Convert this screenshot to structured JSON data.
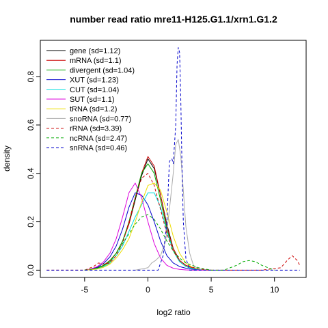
{
  "chart_data": {
    "type": "line",
    "title": "number read ratio mre11-H125.G1.1/xrn1.G1.2",
    "xlabel": "log2 ratio",
    "ylabel": "density",
    "xlim": [
      -8.5,
      12.5
    ],
    "ylim": [
      -0.03,
      0.95
    ],
    "x_ticks": [
      -5,
      0,
      5,
      10
    ],
    "y_ticks": [
      0.0,
      0.2,
      0.4,
      0.6,
      0.8
    ],
    "grid": false,
    "legend_position": "top-left",
    "series": [
      {
        "name": "gene (sd=1.12)",
        "color": "#000000",
        "dash": "solid",
        "x": [
          -5,
          -4.5,
          -4,
          -3.5,
          -3,
          -2.5,
          -2,
          -1.5,
          -1,
          -0.5,
          0,
          0.5,
          1,
          1.5,
          2,
          2.5,
          3,
          3.5,
          4,
          5
        ],
        "y": [
          0.0,
          0.004,
          0.01,
          0.02,
          0.04,
          0.07,
          0.12,
          0.19,
          0.29,
          0.39,
          0.46,
          0.42,
          0.31,
          0.19,
          0.09,
          0.04,
          0.02,
          0.01,
          0.004,
          0.0
        ]
      },
      {
        "name": "mRNA (sd=1.1)",
        "color": "#cc0000",
        "dash": "solid",
        "x": [
          -5,
          -4.5,
          -4,
          -3.5,
          -3,
          -2.5,
          -2,
          -1.5,
          -1,
          -0.5,
          0,
          0.5,
          1,
          1.5,
          2,
          2.5,
          3,
          3.5,
          4,
          5
        ],
        "y": [
          0.0,
          0.004,
          0.01,
          0.02,
          0.04,
          0.07,
          0.12,
          0.19,
          0.3,
          0.4,
          0.47,
          0.43,
          0.31,
          0.18,
          0.09,
          0.04,
          0.02,
          0.01,
          0.004,
          0.0
        ]
      },
      {
        "name": "divergent (sd=1.04)",
        "color": "#00aa00",
        "dash": "solid",
        "x": [
          -5,
          -4.5,
          -4,
          -3.5,
          -3,
          -2.5,
          -2,
          -1.5,
          -1,
          -0.5,
          0,
          0.5,
          1,
          1.5,
          2,
          2.5,
          3,
          3.5,
          4,
          5
        ],
        "y": [
          0.0,
          0.003,
          0.008,
          0.018,
          0.035,
          0.07,
          0.12,
          0.2,
          0.3,
          0.4,
          0.44,
          0.4,
          0.29,
          0.17,
          0.08,
          0.035,
          0.015,
          0.007,
          0.003,
          0.0
        ]
      },
      {
        "name": "XUT (sd=1.23)",
        "color": "#0000cc",
        "dash": "solid",
        "x": [
          -5,
          -4.5,
          -4,
          -3.5,
          -3,
          -2.5,
          -2,
          -1.5,
          -1,
          -0.5,
          0,
          0.5,
          1,
          1.5,
          2,
          2.5,
          3,
          3.5,
          4,
          5
        ],
        "y": [
          0.0,
          0.004,
          0.012,
          0.028,
          0.055,
          0.1,
          0.17,
          0.26,
          0.32,
          0.31,
          0.27,
          0.2,
          0.12,
          0.06,
          0.03,
          0.015,
          0.008,
          0.004,
          0.002,
          0.0
        ]
      },
      {
        "name": "CUT (sd=1.04)",
        "color": "#00dddd",
        "dash": "solid",
        "x": [
          -5,
          -4.5,
          -4,
          -3.5,
          -3,
          -2.5,
          -2,
          -1.5,
          -1,
          -0.5,
          0,
          0.5,
          1,
          1.5,
          2,
          2.5,
          3,
          3.5,
          4,
          5
        ],
        "y": [
          0.0,
          0.002,
          0.006,
          0.014,
          0.03,
          0.06,
          0.1,
          0.16,
          0.22,
          0.27,
          0.32,
          0.32,
          0.26,
          0.16,
          0.08,
          0.035,
          0.015,
          0.007,
          0.003,
          0.0
        ]
      },
      {
        "name": "SUT (sd=1.1)",
        "color": "#dd00dd",
        "dash": "solid",
        "x": [
          -5,
          -4.5,
          -4,
          -3.5,
          -3,
          -2.5,
          -2,
          -1.5,
          -1,
          -0.5,
          0,
          0.5,
          1,
          1.5,
          2,
          2.5,
          3,
          3.5,
          4,
          5
        ],
        "y": [
          0.0,
          0.005,
          0.015,
          0.035,
          0.07,
          0.13,
          0.22,
          0.32,
          0.36,
          0.3,
          0.2,
          0.11,
          0.05,
          0.02,
          0.008,
          0.003,
          0.001,
          0.0,
          0.0,
          0.0
        ]
      },
      {
        "name": "tRNA (sd=1.2)",
        "color": "#eedd00",
        "dash": "solid",
        "x": [
          -5,
          -4.5,
          -4,
          -3.5,
          -3,
          -2.5,
          -2,
          -1.5,
          -1,
          -0.5,
          0,
          0.5,
          1,
          1.5,
          2,
          2.5,
          3,
          3.5,
          4,
          5
        ],
        "y": [
          0.0,
          0.002,
          0.005,
          0.012,
          0.025,
          0.05,
          0.085,
          0.13,
          0.2,
          0.28,
          0.35,
          0.36,
          0.33,
          0.24,
          0.14,
          0.07,
          0.03,
          0.012,
          0.005,
          0.0
        ]
      },
      {
        "name": "snoRNA (sd=0.77)",
        "color": "#aaaaaa",
        "dash": "solid",
        "x": [
          -1,
          -0.5,
          0,
          0.3,
          0.6,
          1,
          1.4,
          1.7,
          2,
          2.2,
          2.4,
          2.6,
          2.8,
          3,
          3.3,
          3.6,
          4,
          5
        ],
        "y": [
          0.0,
          0.005,
          0.01,
          0.03,
          0.04,
          0.06,
          0.12,
          0.25,
          0.4,
          0.52,
          0.54,
          0.47,
          0.33,
          0.18,
          0.07,
          0.02,
          0.005,
          0.0
        ]
      },
      {
        "name": "rRNA (sd=3.39)",
        "color": "#cc0000",
        "dash": "dashed",
        "x": [
          -8,
          -6,
          -5,
          -4.3,
          -3.9,
          -3.5,
          -3,
          -2.5,
          -2,
          -1.5,
          -1,
          -0.5,
          0,
          0.5,
          1,
          1.5,
          2,
          2.5,
          3,
          4,
          5,
          7,
          9,
          10.5,
          11,
          11.4,
          11.8,
          12
        ],
        "y": [
          0.0,
          0.0,
          0.0,
          0.015,
          0.03,
          0.025,
          0.03,
          0.06,
          0.11,
          0.2,
          0.3,
          0.38,
          0.4,
          0.35,
          0.25,
          0.15,
          0.08,
          0.04,
          0.02,
          0.005,
          0.0,
          0.0,
          0.0,
          0.01,
          0.04,
          0.06,
          0.04,
          0.02
        ]
      },
      {
        "name": "ncRNA (sd=2.47)",
        "color": "#00aa00",
        "dash": "dashed",
        "x": [
          -5,
          -4.5,
          -4,
          -3.5,
          -3,
          -2.5,
          -2,
          -1.5,
          -1,
          -0.5,
          0,
          0.5,
          1,
          1.5,
          2,
          2.5,
          3,
          4,
          5,
          6,
          7,
          7.5,
          8,
          8.5,
          9,
          10
        ],
        "y": [
          0.0,
          0.004,
          0.01,
          0.02,
          0.04,
          0.07,
          0.11,
          0.15,
          0.19,
          0.22,
          0.23,
          0.21,
          0.17,
          0.12,
          0.08,
          0.05,
          0.03,
          0.01,
          0.0,
          0.0,
          0.02,
          0.035,
          0.04,
          0.035,
          0.02,
          0.0
        ]
      },
      {
        "name": "snRNA (sd=0.46)",
        "color": "#0000cc",
        "dash": "dashed",
        "x": [
          -8,
          0,
          0.8,
          1.2,
          1.5,
          1.7,
          1.9,
          2.0,
          2.2,
          2.3,
          2.4,
          2.5,
          2.6,
          2.7,
          2.8,
          3.0,
          3.3,
          12
        ],
        "y": [
          0.0,
          0.0,
          0.0,
          0.06,
          0.2,
          0.45,
          0.46,
          0.44,
          0.6,
          0.85,
          0.92,
          0.9,
          0.7,
          0.4,
          0.2,
          0.05,
          0.0,
          0.0
        ]
      }
    ]
  }
}
